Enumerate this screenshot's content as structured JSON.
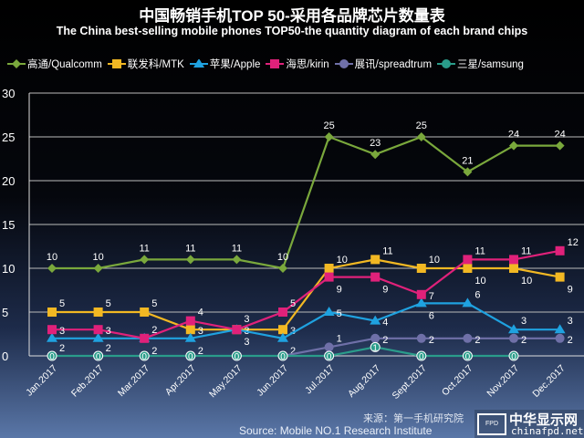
{
  "chart_data": {
    "type": "line",
    "title": "中国畅销手机TOP 50-采用各品牌芯片数量表",
    "subtitle": "The China best-selling mobile phones TOP50-the quantity diagram of each brand chips",
    "xlabel": "",
    "ylabel": "",
    "ylim": [
      0,
      30
    ],
    "yticks": [
      "0",
      "5",
      "10",
      "15",
      "20",
      "25",
      "30"
    ],
    "categories": [
      "Jan.2017",
      "Feb.2017",
      "Mar.2017",
      "Apr.2017",
      "May.2017",
      "Jun.2017",
      "Jul.2017",
      "Aug.2017",
      "Sept.2017",
      "Oct.2017",
      "Nov.2017",
      "Dec.2017"
    ],
    "grid": true,
    "legend_position": "top",
    "series": [
      {
        "name": "高通/Qualcomm",
        "color": "#7aa83c",
        "marker": "diamond",
        "values": [
          10,
          10,
          11,
          11,
          11,
          10,
          25,
          23,
          25,
          21,
          24,
          24
        ]
      },
      {
        "name": "联发科/MTK",
        "color": "#f2b823",
        "marker": "square",
        "values": [
          5,
          5,
          5,
          3,
          3,
          3,
          10,
          11,
          10,
          10,
          10,
          9
        ]
      },
      {
        "name": "苹果/Apple",
        "color": "#1fa2e0",
        "marker": "triangle",
        "values": [
          2,
          2,
          2,
          2,
          3,
          2,
          5,
          4,
          6,
          6,
          3,
          3
        ]
      },
      {
        "name": "海思/kirin",
        "color": "#e0217a",
        "marker": "square",
        "values": [
          3,
          3,
          2,
          4,
          3,
          5,
          9,
          9,
          7,
          11,
          11,
          12
        ]
      },
      {
        "name": "展讯/spreadtrum",
        "color": "#6f70a8",
        "marker": "circle",
        "values": [
          null,
          null,
          null,
          null,
          null,
          0,
          1,
          2,
          2,
          2,
          2,
          2
        ]
      },
      {
        "name": "三星/samsung",
        "color": "#2a9c8a",
        "marker": "circle",
        "values": [
          0,
          0,
          0,
          0,
          0,
          0,
          0,
          1,
          0,
          0,
          0,
          null
        ]
      }
    ]
  },
  "footer": {
    "source_cn": "来源：第一手机研究院",
    "source_en": "Source: Mobile NO.1 Research Institute"
  },
  "watermark": {
    "box": "FPD",
    "name": "中华显示网",
    "url": "chinafpd.net"
  }
}
